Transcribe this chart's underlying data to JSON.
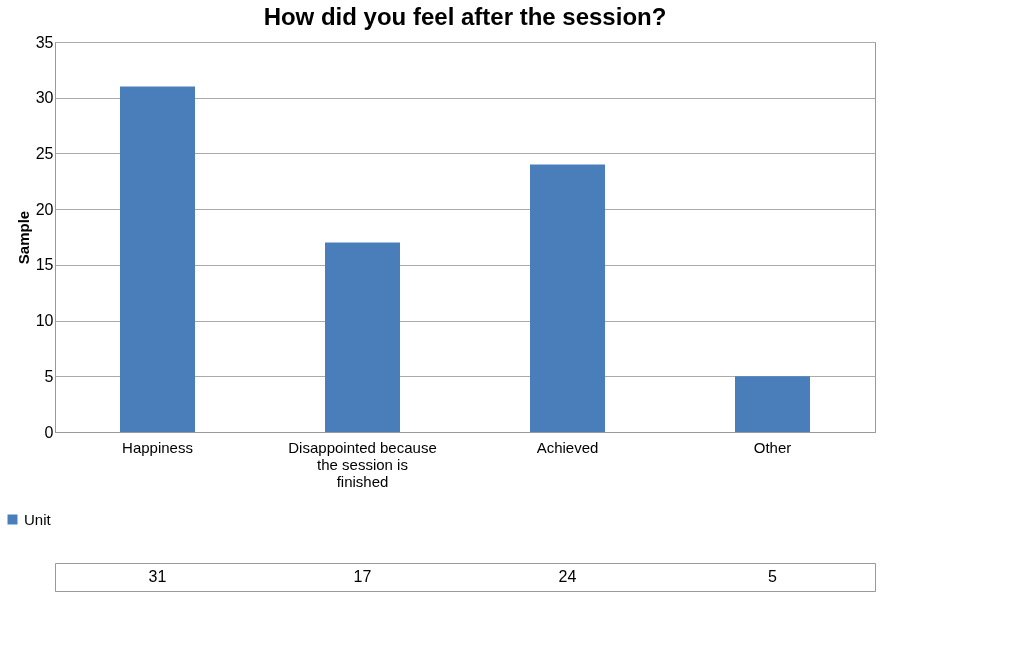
{
  "chart_data": {
    "type": "bar",
    "title": "How did you feel after the session?",
    "ylabel": "Sample",
    "categories": [
      "Happiness",
      "Disappointed because the session is finished",
      "Achieved",
      "Other"
    ],
    "series": [
      {
        "name": "Unit",
        "color": "#4a7ebb",
        "values": [
          31,
          17,
          24,
          5
        ]
      }
    ],
    "ylim": [
      0,
      35
    ],
    "yticks": [
      0,
      5,
      10,
      15,
      20,
      25,
      30,
      35
    ],
    "grid": "y",
    "data_labels": true,
    "legend": "bottom left"
  }
}
